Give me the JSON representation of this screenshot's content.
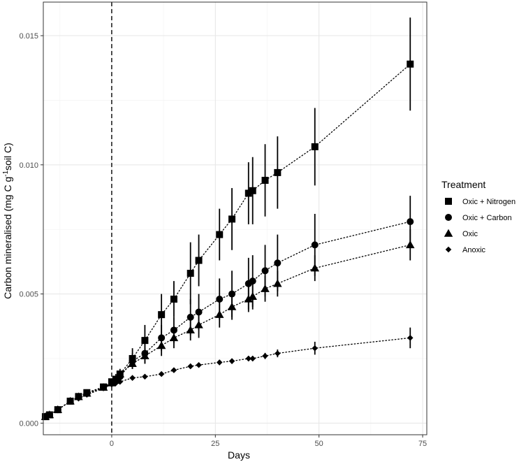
{
  "chart_data": {
    "type": "scatter",
    "xlabel": "Days",
    "ylabel_parts": {
      "base": "Carbon mineralised (mg C g",
      "sup": "-1",
      "tail": "soil C)"
    },
    "xlim": [
      -16.5,
      76
    ],
    "ylim": [
      -0.00045,
      0.0163
    ],
    "x_ticks": [
      0,
      25,
      50,
      75
    ],
    "x_tick_labels": [
      "0",
      "25",
      "50",
      "75"
    ],
    "y_ticks": [
      0.0,
      0.005,
      0.01,
      0.015
    ],
    "y_tick_labels": [
      "0.000",
      "0.005",
      "0.010",
      "0.015"
    ],
    "grid": true,
    "vline_x": 0,
    "legend": {
      "title": "Treatment",
      "position": "right"
    },
    "series": [
      {
        "name": "Oxic + Nitrogen",
        "shape": "square",
        "x": [
          -16,
          -15,
          -13,
          -10,
          -8,
          -6,
          -2,
          0,
          1,
          2,
          5,
          8,
          12,
          15,
          19,
          21,
          26,
          29,
          33,
          34,
          37,
          40,
          49,
          72
        ],
        "y": [
          0.00025,
          0.00032,
          0.00052,
          0.00085,
          0.00103,
          0.00118,
          0.0014,
          0.0016,
          0.0017,
          0.0019,
          0.0025,
          0.0032,
          0.0042,
          0.0048,
          0.0058,
          0.0063,
          0.0073,
          0.0079,
          0.0089,
          0.009,
          0.0094,
          0.0097,
          0.0107,
          0.0139
        ],
        "err": [
          0,
          0,
          0,
          0,
          0,
          0,
          0,
          0.0001,
          0.0002,
          0.0002,
          0.0004,
          0.0006,
          0.0008,
          0.0007,
          0.0012,
          0.001,
          0.001,
          0.0012,
          0.0012,
          0.0013,
          0.0014,
          0.0014,
          0.0015,
          0.0018
        ]
      },
      {
        "name": "Oxic + Carbon",
        "shape": "circle",
        "x": [
          -16,
          -15,
          -13,
          -10,
          -8,
          -6,
          -2,
          0,
          1,
          2,
          5,
          8,
          12,
          15,
          19,
          21,
          26,
          29,
          33,
          34,
          37,
          40,
          49,
          72
        ],
        "y": [
          0.00025,
          0.00032,
          0.00052,
          0.00085,
          0.00102,
          0.00115,
          0.00138,
          0.00155,
          0.00165,
          0.0018,
          0.0024,
          0.0027,
          0.0033,
          0.0036,
          0.0041,
          0.0043,
          0.0048,
          0.005,
          0.0054,
          0.0055,
          0.0059,
          0.0062,
          0.0069,
          0.0078
        ],
        "err": [
          0,
          0,
          0,
          0,
          0,
          0,
          0,
          0.0001,
          0.0001,
          0.0001,
          0.0003,
          0.0004,
          0.0005,
          0.0005,
          0.0007,
          0.0007,
          0.0008,
          0.0009,
          0.001,
          0.001,
          0.001,
          0.0011,
          0.0012,
          0.001
        ]
      },
      {
        "name": "Oxic",
        "shape": "triangle",
        "x": [
          -16,
          -15,
          -13,
          -10,
          -8,
          -6,
          -2,
          0,
          1,
          2,
          5,
          8,
          12,
          15,
          19,
          21,
          26,
          29,
          33,
          34,
          37,
          40,
          49,
          72
        ],
        "y": [
          0.00025,
          0.00032,
          0.00052,
          0.00085,
          0.00102,
          0.00115,
          0.00138,
          0.00155,
          0.00165,
          0.0019,
          0.0023,
          0.0026,
          0.003,
          0.0033,
          0.0036,
          0.0038,
          0.0042,
          0.0045,
          0.0048,
          0.0049,
          0.0052,
          0.0054,
          0.006,
          0.0069
        ],
        "err": [
          0,
          0,
          0,
          0,
          0,
          0,
          0,
          0.0001,
          0.0001,
          0.0001,
          0.0002,
          0.0003,
          0.0004,
          0.0004,
          0.0004,
          0.0005,
          0.0005,
          0.0005,
          0.0005,
          0.0005,
          0.0005,
          0.0005,
          0.0005,
          0.0006
        ]
      },
      {
        "name": "Anoxic",
        "shape": "diamond",
        "x": [
          -16,
          -15,
          -13,
          -10,
          -8,
          -6,
          -2,
          0,
          1,
          2,
          5,
          8,
          12,
          15,
          19,
          21,
          26,
          29,
          33,
          34,
          37,
          40,
          49,
          72
        ],
        "y": [
          0.00025,
          0.00032,
          0.00052,
          0.00085,
          0.00095,
          0.0011,
          0.00135,
          0.0015,
          0.00155,
          0.0016,
          0.00175,
          0.0018,
          0.0019,
          0.00205,
          0.0022,
          0.00225,
          0.00235,
          0.0024,
          0.0025,
          0.0025,
          0.0026,
          0.0027,
          0.0029,
          0.0033
        ],
        "err": [
          0,
          0,
          0,
          0,
          0,
          0,
          0,
          0,
          0,
          0,
          0,
          0,
          0,
          0,
          0,
          0,
          0.0001,
          0.0001,
          0.0001,
          0.0001,
          0.00012,
          0.00015,
          0.00025,
          0.0004
        ]
      }
    ]
  }
}
